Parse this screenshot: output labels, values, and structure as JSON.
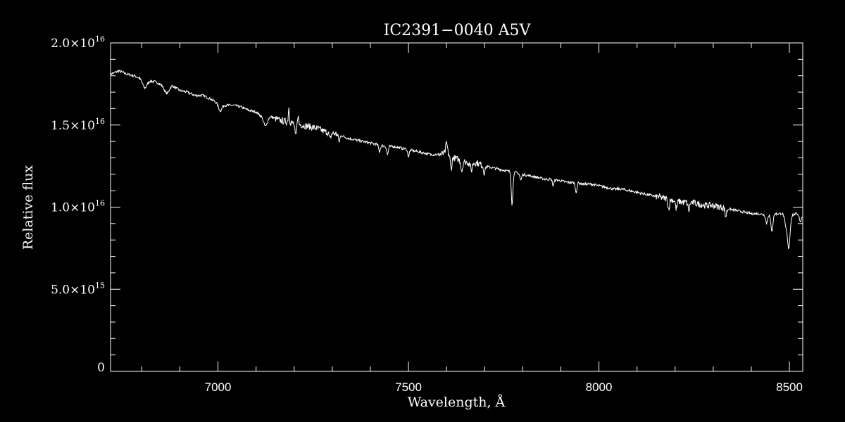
{
  "chart_data": {
    "type": "line",
    "title": "IC2391−0040   A5V",
    "xlabel": "Wavelength, Å",
    "ylabel": "Relative flux",
    "xlim": [
      6718,
      8535
    ],
    "ylim": [
      0,
      2e+16
    ],
    "x_ticks": [
      {
        "value": 7000,
        "label": "7000"
      },
      {
        "value": 7500,
        "label": "7500"
      },
      {
        "value": 8000,
        "label": "8000"
      },
      {
        "value": 8500,
        "label": "8500"
      }
    ],
    "y_ticks": [
      {
        "value": 0,
        "mantissa": "0",
        "exponent": ""
      },
      {
        "value": 5000000000000000.0,
        "mantissa": "5.0×10",
        "exponent": "15"
      },
      {
        "value": 1e+16,
        "mantissa": "1.0×10",
        "exponent": "16"
      },
      {
        "value": 1.5e+16,
        "mantissa": "1.5×10",
        "exponent": "16"
      },
      {
        "value": 2e+16,
        "mantissa": "2.0×10",
        "exponent": "16"
      }
    ],
    "x_minor_step": 100,
    "y_minor_step": 1000000000000000.0,
    "line_color": "#ffffff",
    "background": "#000000",
    "series": [
      {
        "points": [
          [
            6718,
            1.81e+16
          ],
          [
            6740,
            1.83e+16
          ],
          [
            6760,
            1.81e+16
          ],
          [
            6780,
            1.8e+16
          ],
          [
            6800,
            1.78e+16
          ],
          [
            6820,
            1.77e+16
          ],
          [
            6840,
            1.76e+16
          ],
          [
            6860,
            1.73e+16
          ],
          [
            6880,
            1.74e+16
          ],
          [
            6900,
            1.71e+16
          ],
          [
            6920,
            1.7e+16
          ],
          [
            6940,
            1.68e+16
          ],
          [
            6960,
            1.68e+16
          ],
          [
            6980,
            1.66e+16
          ],
          [
            7000,
            1.63e+16
          ],
          [
            7020,
            1.62e+16
          ],
          [
            7040,
            1.62e+16
          ],
          [
            7060,
            1.61e+16
          ],
          [
            7080,
            1.59e+16
          ],
          [
            7100,
            1.58e+16
          ],
          [
            7120,
            1.54e+16
          ],
          [
            7140,
            1.55e+16
          ],
          [
            7160,
            1.53e+16
          ],
          [
            7180,
            1.52e+16
          ],
          [
            7200,
            1.51e+16
          ],
          [
            7220,
            1.5e+16
          ],
          [
            7240,
            1.49e+16
          ],
          [
            7260,
            1.48e+16
          ],
          [
            7280,
            1.46e+16
          ],
          [
            7300,
            1.45e+16
          ],
          [
            7320,
            1.44e+16
          ],
          [
            7340,
            1.42e+16
          ],
          [
            7360,
            1.41e+16
          ],
          [
            7380,
            1.4e+16
          ],
          [
            7400,
            1.39e+16
          ],
          [
            7420,
            1.38e+16
          ],
          [
            7440,
            1.37e+16
          ],
          [
            7460,
            1.37e+16
          ],
          [
            7480,
            1.36e+16
          ],
          [
            7500,
            1.35e+16
          ],
          [
            7520,
            1.34e+16
          ],
          [
            7540,
            1.33e+16
          ],
          [
            7560,
            1.32e+16
          ],
          [
            7580,
            1.32e+16
          ],
          [
            7600,
            1.33e+16
          ],
          [
            7620,
            1.3e+16
          ],
          [
            7640,
            1.28e+16
          ],
          [
            7660,
            1.27e+16
          ],
          [
            7680,
            1.27e+16
          ],
          [
            7700,
            1.25e+16
          ],
          [
            7720,
            1.24e+16
          ],
          [
            7740,
            1.23e+16
          ],
          [
            7760,
            1.22e+16
          ],
          [
            7780,
            1.21e+16
          ],
          [
            7800,
            1.2e+16
          ],
          [
            7820,
            1.19e+16
          ],
          [
            7840,
            1.18e+16
          ],
          [
            7860,
            1.17e+16
          ],
          [
            7880,
            1.17e+16
          ],
          [
            7900,
            1.16e+16
          ],
          [
            7920,
            1.15e+16
          ],
          [
            7940,
            1.15e+16
          ],
          [
            7960,
            1.14e+16
          ],
          [
            7980,
            1.14e+16
          ],
          [
            8000,
            1.13e+16
          ],
          [
            8020,
            1.12e+16
          ],
          [
            8040,
            1.11e+16
          ],
          [
            8060,
            1.11e+16
          ],
          [
            8080,
            1.1e+16
          ],
          [
            8100,
            1.09e+16
          ],
          [
            8120,
            1.08e+16
          ],
          [
            8140,
            1.07e+16
          ],
          [
            8160,
            1.06e+16
          ],
          [
            8180,
            1.05e+16
          ],
          [
            8200,
            1.04e+16
          ],
          [
            8220,
            1.03e+16
          ],
          [
            8240,
            1.03e+16
          ],
          [
            8260,
            1.02e+16
          ],
          [
            8280,
            1.01e+16
          ],
          [
            8300,
            1.01e+16
          ],
          [
            8320,
            1e+16
          ],
          [
            8340,
            9900000000000000.0
          ],
          [
            8360,
            9800000000000000.0
          ],
          [
            8380,
            9700000000000000.0
          ],
          [
            8400,
            9600000000000000.0
          ],
          [
            8420,
            9600000000000000.0
          ],
          [
            8440,
            9500000000000000.0
          ],
          [
            8460,
            9600000000000000.0
          ],
          [
            8480,
            9600000000000000.0
          ],
          [
            8500,
            9500000000000000.0
          ],
          [
            8520,
            9600000000000000.0
          ],
          [
            8535,
            9500000000000000.0
          ]
        ],
        "features": [
          {
            "x": 6808,
            "depth": 500000000000000.0,
            "width": 8
          },
          {
            "x": 6866,
            "depth": 400000000000000.0,
            "width": 8
          },
          {
            "x": 7006,
            "depth": 400000000000000.0,
            "width": 6
          },
          {
            "x": 7125,
            "depth": 500000000000000.0,
            "width": 6
          },
          {
            "x": 7186,
            "depth": -900000000000000.0,
            "width": 2
          },
          {
            "x": 7204,
            "depth": 800000000000000.0,
            "width": 3
          },
          {
            "x": 7210,
            "depth": -600000000000000.0,
            "width": 2
          },
          {
            "x": 7294,
            "depth": 400000000000000.0,
            "width": 3
          },
          {
            "x": 7318,
            "depth": 400000000000000.0,
            "width": 3
          },
          {
            "x": 7424,
            "depth": 400000000000000.0,
            "width": 3
          },
          {
            "x": 7445,
            "depth": 500000000000000.0,
            "width": 3
          },
          {
            "x": 7500,
            "depth": 400000000000000.0,
            "width": 3
          },
          {
            "x": 7600,
            "depth": -600000000000000.0,
            "width": 3
          },
          {
            "x": 7612,
            "depth": 800000000000000.0,
            "width": 3
          },
          {
            "x": 7640,
            "depth": 600000000000000.0,
            "width": 3
          },
          {
            "x": 7665,
            "depth": 500000000000000.0,
            "width": 3
          },
          {
            "x": 7699,
            "depth": 400000000000000.0,
            "width": 3
          },
          {
            "x": 7772,
            "depth": 2000000000000000.0,
            "width": 3
          },
          {
            "x": 7795,
            "depth": 400000000000000.0,
            "width": 3
          },
          {
            "x": 7880,
            "depth": 400000000000000.0,
            "width": 3
          },
          {
            "x": 7940,
            "depth": 600000000000000.0,
            "width": 3
          },
          {
            "x": 8183,
            "depth": 600000000000000.0,
            "width": 3
          },
          {
            "x": 8203,
            "depth": 500000000000000.0,
            "width": 3
          },
          {
            "x": 8236,
            "depth": 500000000000000.0,
            "width": 3
          },
          {
            "x": 8333,
            "depth": 500000000000000.0,
            "width": 3
          },
          {
            "x": 8440,
            "depth": 500000000000000.0,
            "width": 3
          },
          {
            "x": 8454,
            "depth": 1000000000000000.0,
            "width": 4
          },
          {
            "x": 8490,
            "depth": 600000000000000.0,
            "width": 4
          },
          {
            "x": 8498,
            "depth": 2000000000000000.0,
            "width": 5
          },
          {
            "x": 8529,
            "depth": 400000000000000.0,
            "width": 4
          }
        ]
      }
    ]
  }
}
